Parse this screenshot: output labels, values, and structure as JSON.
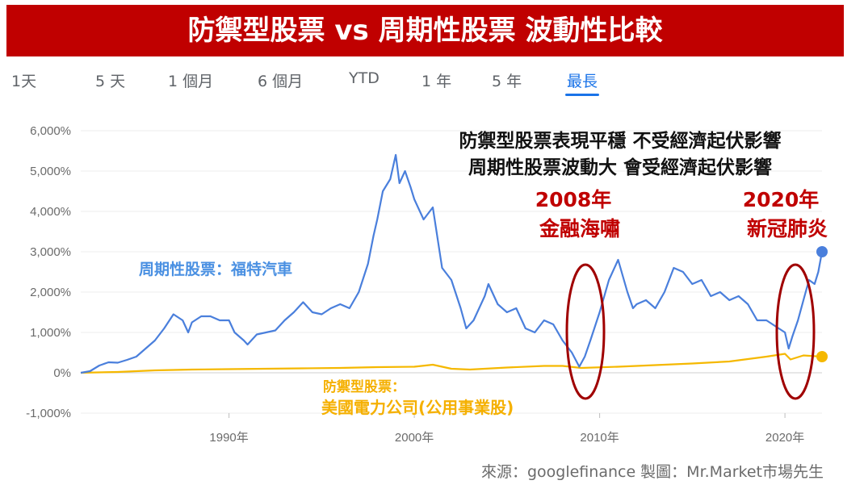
{
  "header": {
    "title": "防禦型股票 vs 周期性股票 波動性比較"
  },
  "tabs": [
    {
      "label": "1天",
      "active": false
    },
    {
      "label": "5 天",
      "active": false
    },
    {
      "label": "1 個月",
      "active": false
    },
    {
      "label": "6 個月",
      "active": false
    },
    {
      "label": "YTD",
      "active": false
    },
    {
      "label": "1 年",
      "active": false
    },
    {
      "label": "5 年",
      "active": false
    },
    {
      "label": "最長",
      "active": true
    }
  ],
  "annotations": {
    "headline_1": "防禦型股票表現平穩 不受經濟起伏影響",
    "headline_2": "周期性股票波動大 會受經濟起伏影響",
    "event_2008_year": "2008年",
    "event_2008_label": "金融海嘯",
    "event_2020_year": "2020年",
    "event_2020_label": "新冠肺炎",
    "cyclical_label": "周期性股票：福特汽車",
    "defensive_label_1": "防禦型股票：",
    "defensive_label_2": "美國電力公司(公用事業股)"
  },
  "source": "來源：googlefinance  製圖：Mr.Market市場先生",
  "colors": {
    "cyclical": "#4a7fdc",
    "defensive": "#f5b800",
    "highlight": "#a00000",
    "title_bg": "#c00000",
    "tab_active": "#1a73e8"
  },
  "chart_data": {
    "type": "line",
    "y_unit": "%",
    "ylim": [
      -1000,
      6000
    ],
    "y_ticks": [
      6000,
      5000,
      4000,
      3000,
      2000,
      1000,
      0,
      -1000
    ],
    "y_tick_labels": [
      "6,000%",
      "5,000%",
      "4,000%",
      "3,000%",
      "2,000%",
      "1,000%",
      "0%",
      "-1,000%"
    ],
    "xlim": [
      1982,
      2022
    ],
    "x_ticks": [
      1990,
      2000,
      2010,
      2020
    ],
    "x_tick_labels": [
      "1990年",
      "2000年",
      "2010年",
      "2020年"
    ],
    "series": [
      {
        "name": "周期性股票：福特汽車",
        "x": [
          1982.0,
          1982.5,
          1983.0,
          1983.5,
          1984.0,
          1984.5,
          1985.0,
          1985.5,
          1986.0,
          1986.5,
          1987.0,
          1987.5,
          1987.8,
          1988.0,
          1988.5,
          1989.0,
          1989.5,
          1990.0,
          1990.3,
          1990.8,
          1991.0,
          1991.5,
          1992.0,
          1992.5,
          1993.0,
          1993.5,
          1994.0,
          1994.5,
          1995.0,
          1995.5,
          1996.0,
          1996.5,
          1997.0,
          1997.5,
          1997.8,
          1998.0,
          1998.3,
          1998.7,
          1999.0,
          1999.2,
          1999.5,
          1999.8,
          2000.0,
          2000.5,
          2001.0,
          2001.5,
          2002.0,
          2002.5,
          2002.8,
          2003.2,
          2003.8,
          2004.0,
          2004.5,
          2005.0,
          2005.5,
          2006.0,
          2006.5,
          2007.0,
          2007.5,
          2008.0,
          2008.5,
          2008.9,
          2009.2,
          2009.5,
          2010.0,
          2010.5,
          2011.0,
          2011.5,
          2011.8,
          2012.0,
          2012.5,
          2013.0,
          2013.5,
          2014.0,
          2014.5,
          2015.0,
          2015.5,
          2016.0,
          2016.5,
          2017.0,
          2017.5,
          2018.0,
          2018.5,
          2019.0,
          2019.5,
          2020.0,
          2020.2,
          2020.4,
          2020.7,
          2021.0,
          2021.3,
          2021.6,
          2021.8,
          2022.0
        ],
        "values": [
          0,
          40,
          180,
          260,
          250,
          320,
          400,
          600,
          800,
          1100,
          1450,
          1300,
          1000,
          1250,
          1400,
          1400,
          1300,
          1300,
          1000,
          800,
          700,
          950,
          1000,
          1050,
          1300,
          1500,
          1750,
          1500,
          1450,
          1600,
          1700,
          1600,
          2000,
          2700,
          3400,
          3800,
          4500,
          4800,
          5400,
          4700,
          5000,
          4600,
          4300,
          3800,
          4100,
          2600,
          2300,
          1600,
          1100,
          1300,
          1900,
          2200,
          1700,
          1500,
          1600,
          1100,
          1000,
          1300,
          1200,
          800,
          500,
          150,
          400,
          800,
          1500,
          2300,
          2800,
          2000,
          1600,
          1700,
          1800,
          1600,
          2000,
          2600,
          2500,
          2200,
          2300,
          1900,
          2000,
          1800,
          1900,
          1700,
          1300,
          1300,
          1150,
          1000,
          600,
          900,
          1300,
          1800,
          2300,
          2200,
          2500,
          3000
        ]
      },
      {
        "name": "防禦型股票：美國電力公司(公用事業股)",
        "x": [
          1982,
          1984,
          1986,
          1988,
          1990,
          1992,
          1994,
          1996,
          1998,
          2000,
          2001,
          2002,
          2003,
          2005,
          2007,
          2008,
          2009,
          2011,
          2013,
          2015,
          2017,
          2019,
          2020,
          2020.3,
          2021,
          2022
        ],
        "values": [
          0,
          20,
          60,
          80,
          90,
          100,
          110,
          120,
          140,
          150,
          200,
          100,
          80,
          130,
          170,
          170,
          120,
          150,
          190,
          230,
          280,
          400,
          470,
          330,
          430,
          400
        ]
      }
    ]
  }
}
